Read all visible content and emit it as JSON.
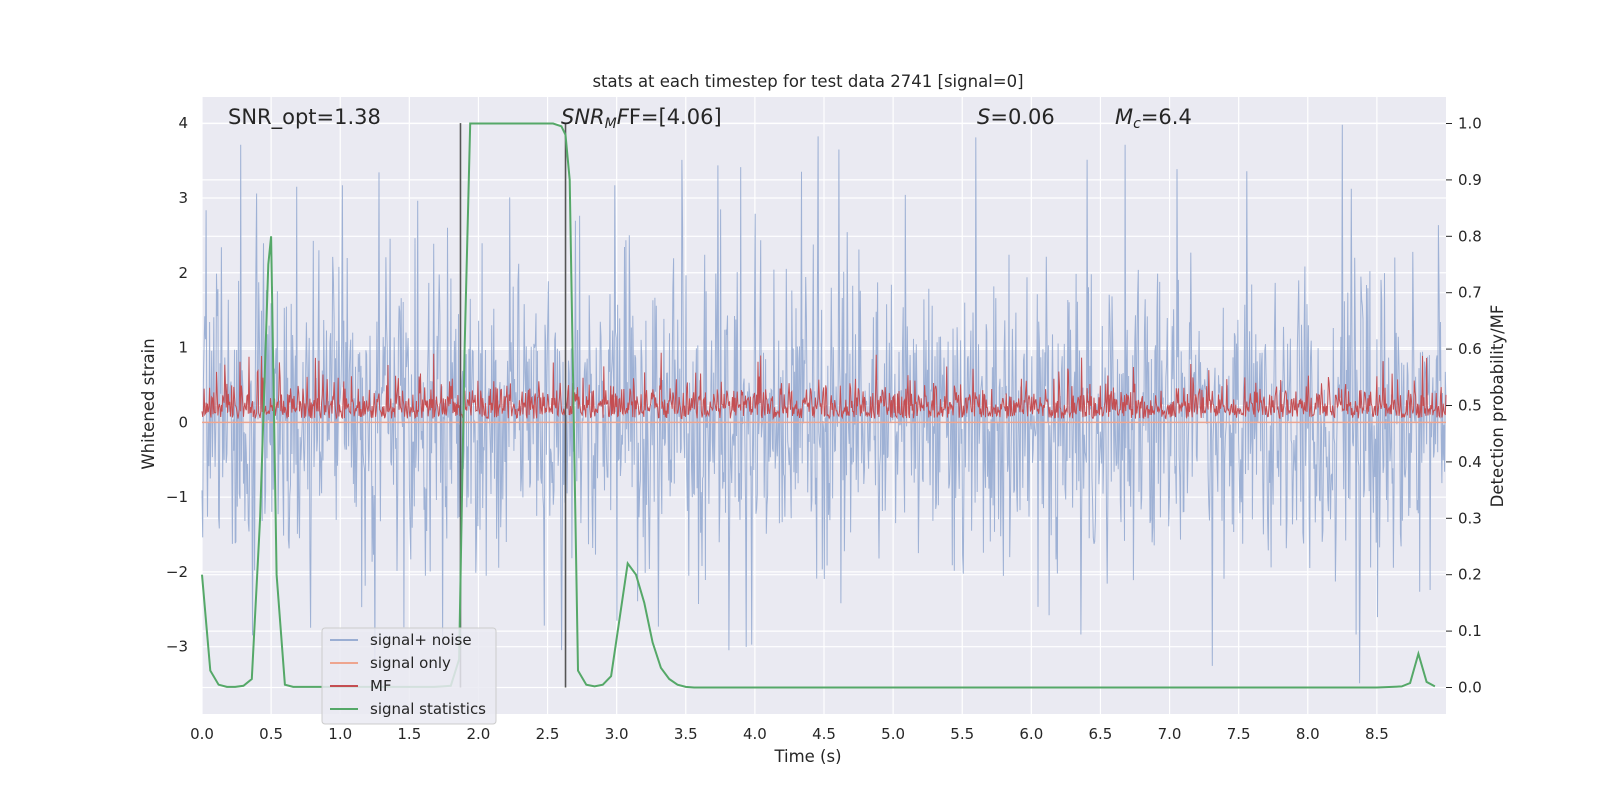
{
  "chart_data": {
    "type": "line",
    "title": "stats at each timestep for test data 2741 [signal=0]",
    "xlabel": "Time (s)",
    "ylabel": "Whitened strain",
    "y2label": "Detection probability/MF",
    "xlim": [
      0.0,
      9.0
    ],
    "ylim": [
      -3.9,
      4.35
    ],
    "y2lim": [
      -0.047,
      1.047
    ],
    "x_ticks": [
      0.0,
      0.5,
      1.0,
      1.5,
      2.0,
      2.5,
      3.0,
      3.5,
      4.0,
      4.5,
      5.0,
      5.5,
      6.0,
      6.5,
      7.0,
      7.5,
      8.0,
      8.5
    ],
    "x_tick_labels": [
      "0.0",
      "0.5",
      "1.0",
      "1.5",
      "2.0",
      "2.5",
      "3.0",
      "3.5",
      "4.0",
      "4.5",
      "5.0",
      "5.5",
      "6.0",
      "6.5",
      "7.0",
      "7.5",
      "8.0",
      "8.5"
    ],
    "y_ticks": [
      4,
      3,
      2,
      1,
      0,
      -1,
      -2,
      -3
    ],
    "y_tick_labels": [
      "4",
      "3",
      "2",
      "1",
      "0",
      "−1",
      "−2",
      "−3"
    ],
    "y2_ticks": [
      1.0,
      0.9,
      0.8,
      0.7,
      0.6,
      0.5,
      0.4,
      0.3,
      0.2,
      0.1,
      0.0
    ],
    "y2_tick_labels": [
      "1.0",
      "0.9",
      "0.8",
      "0.7",
      "0.6",
      "0.5",
      "0.4",
      "0.3",
      "0.2",
      "0.1",
      "0.0"
    ],
    "annotations": {
      "snr_opt": "SNR_opt=1.38",
      "snr_mf_main": "SNR",
      "snr_mf_sub": "M",
      "snr_mf_rest": "F=[4.06]",
      "s_var": "S",
      "s_rest": "=0.06",
      "mc_var": "M",
      "mc_sub": "c",
      "mc_rest": "=6.4"
    },
    "vlines": [
      1.87,
      2.63
    ],
    "legend": {
      "position": "lower-left",
      "entries": [
        "signal+ noise",
        "signal only",
        "MF",
        "signal statistics"
      ]
    },
    "series": [
      {
        "name": "signal statistics",
        "axis": "y2",
        "x": [
          0.0,
          0.06,
          0.12,
          0.18,
          0.24,
          0.3,
          0.36,
          0.42,
          0.48,
          0.5,
          0.54,
          0.6,
          0.66,
          0.72,
          0.78,
          0.84,
          0.9,
          0.96,
          1.02,
          1.08,
          1.14,
          1.2,
          1.26,
          1.32,
          1.38,
          1.44,
          1.5,
          1.56,
          1.62,
          1.68,
          1.74,
          1.8,
          1.86,
          1.9,
          1.94,
          2.0,
          2.06,
          2.12,
          2.18,
          2.24,
          2.3,
          2.36,
          2.42,
          2.48,
          2.54,
          2.6,
          2.63,
          2.66,
          2.72,
          2.78,
          2.84,
          2.9,
          2.96,
          3.02,
          3.08,
          3.14,
          3.2,
          3.26,
          3.32,
          3.38,
          3.44,
          3.5,
          3.56,
          3.62,
          3.68,
          4.0,
          4.5,
          5.0,
          5.5,
          6.0,
          6.5,
          7.0,
          7.5,
          8.0,
          8.5,
          8.68,
          8.74,
          8.8,
          8.86,
          8.92
        ],
        "values": [
          0.2,
          0.03,
          0.005,
          0.001,
          0.001,
          0.003,
          0.015,
          0.3,
          0.75,
          0.8,
          0.2,
          0.005,
          0.001,
          0.001,
          0.001,
          0.001,
          0.001,
          0.001,
          0.001,
          0.001,
          0.001,
          0.001,
          0.001,
          0.001,
          0.001,
          0.001,
          0.001,
          0.001,
          0.001,
          0.001,
          0.002,
          0.003,
          0.05,
          0.6,
          1.0,
          1.0,
          1.0,
          1.0,
          1.0,
          1.0,
          1.0,
          1.0,
          1.0,
          1.0,
          1.0,
          0.995,
          0.98,
          0.9,
          0.03,
          0.005,
          0.002,
          0.005,
          0.02,
          0.12,
          0.22,
          0.2,
          0.15,
          0.08,
          0.035,
          0.015,
          0.005,
          0.001,
          0.0,
          0.0,
          0.0,
          0.0,
          0.0,
          0.0,
          0.0,
          0.0,
          0.0,
          0.0,
          0.0,
          0.0,
          0.0,
          0.002,
          0.008,
          0.06,
          0.01,
          0.002
        ]
      }
    ],
    "dense_series": [
      {
        "name": "signal+ noise",
        "axis": "y",
        "description_values": {
          "envelope_low": -3.55,
          "envelope_high": 4.0,
          "typical_low": -1.3,
          "typical_high": 1.8
        }
      },
      {
        "name": "MF",
        "axis": "y",
        "description_values": {
          "low": 0.0,
          "high": 0.95,
          "typical_high": 0.6
        }
      },
      {
        "name": "signal only",
        "axis": "y",
        "description_values": {
          "value": 0.0
        }
      }
    ]
  },
  "colors": {
    "background": "#ffffff",
    "axes_bg": "#eaeaf2",
    "grid": "#ffffff",
    "noise": "#9aaed3",
    "signal_only": "#eea58f",
    "mf": "#c44e52",
    "stat": "#55a868",
    "vline": "#555555",
    "text": "#262626"
  }
}
